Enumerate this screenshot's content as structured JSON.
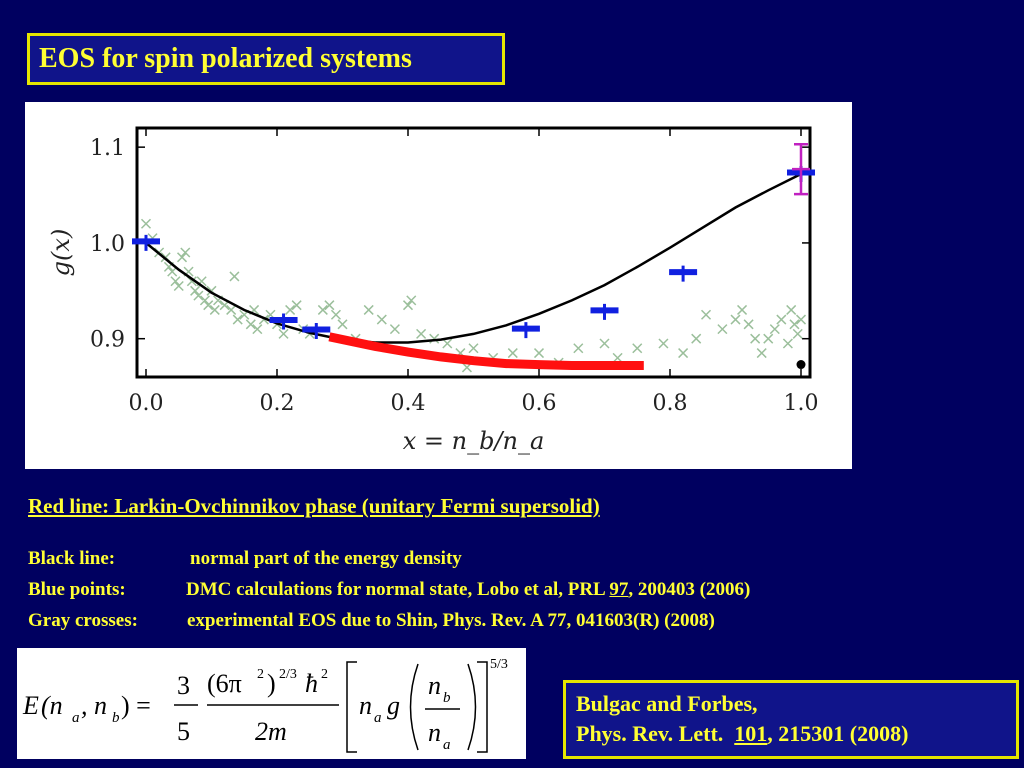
{
  "slide": {
    "title": "EOS for spin polarized systems"
  },
  "chart_data": {
    "type": "scatter",
    "xlabel": "x = n_b/n_a",
    "ylabel": "g(x)",
    "xlim": [
      0.0,
      1.0
    ],
    "ylim": [
      0.86,
      1.12
    ],
    "x_ticks": [
      "0.0",
      "0.2",
      "0.4",
      "0.6",
      "0.8",
      "1.0"
    ],
    "y_ticks": [
      "0.9",
      "1.0",
      "1.1"
    ],
    "black_line": {
      "x": [
        0.0,
        0.05,
        0.1,
        0.15,
        0.2,
        0.25,
        0.3,
        0.35,
        0.4,
        0.45,
        0.5,
        0.55,
        0.6,
        0.65,
        0.7,
        0.75,
        0.8,
        0.85,
        0.9,
        0.95,
        1.0
      ],
      "y": [
        1.0,
        0.972,
        0.948,
        0.93,
        0.916,
        0.906,
        0.899,
        0.896,
        0.896,
        0.899,
        0.905,
        0.914,
        0.926,
        0.94,
        0.956,
        0.975,
        0.995,
        1.016,
        1.037,
        1.055,
        1.072
      ]
    },
    "red_line": {
      "x": [
        0.28,
        0.35,
        0.4,
        0.45,
        0.5,
        0.55,
        0.6,
        0.65,
        0.7,
        0.76
      ],
      "y": [
        0.902,
        0.892,
        0.886,
        0.881,
        0.877,
        0.874,
        0.873,
        0.872,
        0.872,
        0.872
      ]
    },
    "blue_points": [
      {
        "x": 0.0,
        "y": 1.0
      },
      {
        "x": 0.21,
        "y": 0.918
      },
      {
        "x": 0.26,
        "y": 0.908
      },
      {
        "x": 0.58,
        "y": 0.909
      },
      {
        "x": 0.7,
        "y": 0.928
      },
      {
        "x": 0.82,
        "y": 0.968
      },
      {
        "x": 1.0,
        "y": 1.072
      }
    ],
    "magenta_point": {
      "x": 1.0,
      "y": 1.077,
      "err": 0.026
    },
    "black_dot": {
      "x": 1.0,
      "y": 0.873
    },
    "gray_crosses": [
      [
        0.0,
        1.02
      ],
      [
        0.01,
        1.005
      ],
      [
        0.02,
        0.99
      ],
      [
        0.03,
        0.985
      ],
      [
        0.035,
        0.975
      ],
      [
        0.04,
        0.97
      ],
      [
        0.045,
        0.96
      ],
      [
        0.05,
        0.955
      ],
      [
        0.055,
        0.985
      ],
      [
        0.06,
        0.99
      ],
      [
        0.065,
        0.97
      ],
      [
        0.07,
        0.96
      ],
      [
        0.075,
        0.95
      ],
      [
        0.08,
        0.945
      ],
      [
        0.085,
        0.96
      ],
      [
        0.09,
        0.94
      ],
      [
        0.095,
        0.935
      ],
      [
        0.1,
        0.95
      ],
      [
        0.105,
        0.93
      ],
      [
        0.11,
        0.94
      ],
      [
        0.12,
        0.935
      ],
      [
        0.13,
        0.93
      ],
      [
        0.135,
        0.965
      ],
      [
        0.14,
        0.92
      ],
      [
        0.15,
        0.925
      ],
      [
        0.16,
        0.915
      ],
      [
        0.165,
        0.93
      ],
      [
        0.17,
        0.91
      ],
      [
        0.18,
        0.92
      ],
      [
        0.19,
        0.925
      ],
      [
        0.2,
        0.915
      ],
      [
        0.21,
        0.905
      ],
      [
        0.22,
        0.93
      ],
      [
        0.23,
        0.935
      ],
      [
        0.24,
        0.91
      ],
      [
        0.25,
        0.905
      ],
      [
        0.27,
        0.93
      ],
      [
        0.28,
        0.935
      ],
      [
        0.29,
        0.925
      ],
      [
        0.3,
        0.915
      ],
      [
        0.32,
        0.9
      ],
      [
        0.34,
        0.93
      ],
      [
        0.36,
        0.92
      ],
      [
        0.38,
        0.91
      ],
      [
        0.4,
        0.935
      ],
      [
        0.405,
        0.94
      ],
      [
        0.42,
        0.905
      ],
      [
        0.44,
        0.9
      ],
      [
        0.46,
        0.895
      ],
      [
        0.48,
        0.885
      ],
      [
        0.49,
        0.87
      ],
      [
        0.5,
        0.89
      ],
      [
        0.53,
        0.88
      ],
      [
        0.56,
        0.885
      ],
      [
        0.6,
        0.885
      ],
      [
        0.63,
        0.875
      ],
      [
        0.66,
        0.89
      ],
      [
        0.7,
        0.895
      ],
      [
        0.72,
        0.88
      ],
      [
        0.75,
        0.89
      ],
      [
        0.79,
        0.895
      ],
      [
        0.82,
        0.885
      ],
      [
        0.84,
        0.9
      ],
      [
        0.855,
        0.925
      ],
      [
        0.88,
        0.91
      ],
      [
        0.9,
        0.92
      ],
      [
        0.91,
        0.93
      ],
      [
        0.92,
        0.915
      ],
      [
        0.93,
        0.9
      ],
      [
        0.94,
        0.885
      ],
      [
        0.95,
        0.9
      ],
      [
        0.96,
        0.91
      ],
      [
        0.97,
        0.92
      ],
      [
        0.98,
        0.895
      ],
      [
        0.99,
        0.915
      ],
      [
        1.0,
        0.92
      ],
      [
        0.995,
        0.905
      ],
      [
        0.985,
        0.93
      ]
    ]
  },
  "captions": {
    "red_line": "Red line: Larkin-Ovchinnikov phase (unitary Fermi supersolid)",
    "black_key": "Black line:",
    "black_desc": "normal part of the energy density",
    "blue_key": "Blue points:",
    "blue_desc_a": "DMC calculations for normal state, Lobo et al, PRL ",
    "blue_desc_vol": "97",
    "blue_desc_b": ", 200403 (2006)",
    "gray_key": "Gray crosses:",
    "gray_desc": "experimental EOS due to Shin, Phys. Rev. A 77, 041603(R) (2008)"
  },
  "equation": {
    "lhs_E": "E",
    "lhs_args": "(n",
    "sub_a": "a",
    "comma_n": ", n",
    "sub_b": "b",
    "close_eq": ") =",
    "num_3": "3",
    "den_5": "5",
    "num_6pi": "(6π",
    "sup_2": "2",
    "close_paren": ")",
    "sup_23": "2/3",
    "hbar": "ħ",
    "den_2m": "2m",
    "n": "n",
    "g": "g",
    "sup_53": "5/3"
  },
  "reference": {
    "line1": "Bulgac and Forbes,",
    "line2_a": "Phys. Rev. Lett.  ",
    "line2_vol": "101",
    "line2_b": ", 215301 (2008)"
  }
}
